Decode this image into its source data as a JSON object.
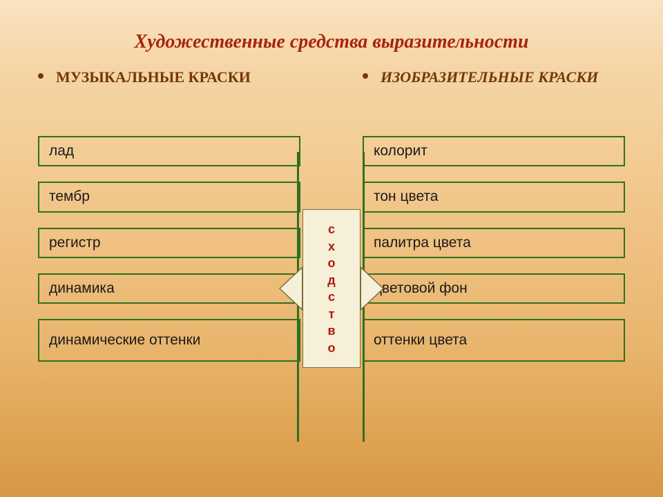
{
  "title": "Художественные средства выразительности",
  "title_color": "#a82410",
  "title_fontsize": 28,
  "header_color": "#733808",
  "header_fontsize": 22,
  "left": {
    "header": "МУЗЫКАЛЬНЫЕ КРАСКИ",
    "items": [
      "лад",
      "тембр",
      "регистр",
      "динамика",
      "динамические оттенки"
    ]
  },
  "right": {
    "header": "ИЗОБРАЗИТЕЛЬНЫЕ КРАСКИ",
    "items": [
      "колорит",
      "тон цвета",
      "палитра цвета",
      "цветовой фон",
      "оттенки цвета"
    ]
  },
  "item_border_color": "#2d7020",
  "item_text_color": "#1a1a1a",
  "item_fontsize": 21,
  "divider_color": "#2d7020",
  "center": {
    "letters": [
      "с",
      "х",
      "о",
      "д",
      "с",
      "т",
      "в",
      "о"
    ],
    "bg_color": "#f6f0d8",
    "text_color": "#b01810",
    "border_color": "#7a6a3a",
    "fontsize": 18
  },
  "background_gradient": [
    "#f9e3c0",
    "#d89845"
  ]
}
